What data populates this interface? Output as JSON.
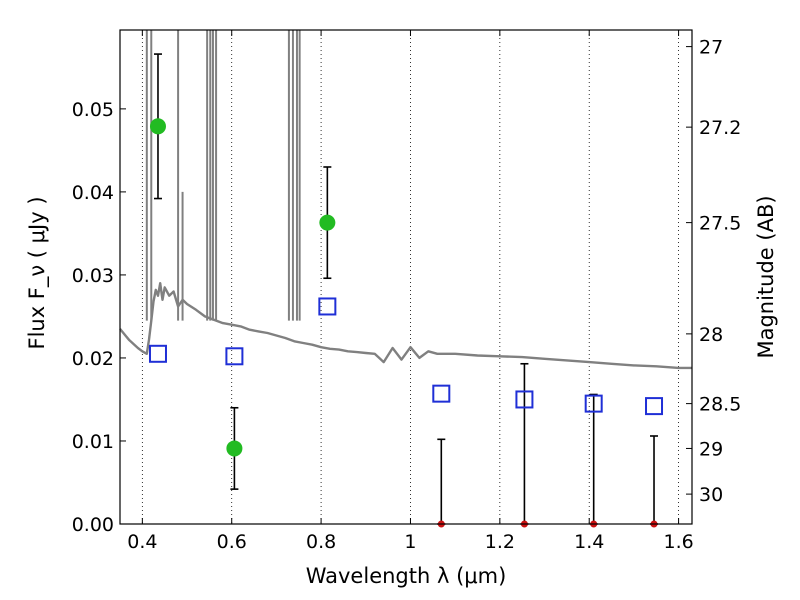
{
  "chart_data": {
    "type": "scatter",
    "xlabel": "Wavelength  λ (μm)",
    "ylabel": "Flux  F_ν  ( μJy )",
    "y2label": "Magnitude (AB)",
    "xlim": [
      0.35,
      1.63
    ],
    "ylim": [
      0.0,
      0.0595
    ],
    "grid": "x-dotted",
    "x_ticks": [
      0.4,
      0.6,
      0.8,
      1.0,
      1.2,
      1.4,
      1.6
    ],
    "x_tick_labels": [
      "0.4",
      "0.6",
      "0.8",
      "1",
      "1.2",
      "1.4",
      "1.6"
    ],
    "y_ticks": [
      0.0,
      0.01,
      0.02,
      0.03,
      0.04,
      0.05
    ],
    "y_tick_labels": [
      "0.00",
      "0.01",
      "0.02",
      "0.03",
      "0.04",
      "0.05"
    ],
    "y2_ticks": [
      {
        "label": "27",
        "flux": 0.0575
      },
      {
        "label": "27.2",
        "flux": 0.0478
      },
      {
        "label": "27.5",
        "flux": 0.0363
      },
      {
        "label": "28",
        "flux": 0.0229
      },
      {
        "label": "28.5",
        "flux": 0.0145
      },
      {
        "label": "29",
        "flux": 0.0091
      },
      {
        "label": "30",
        "flux": 0.0036
      }
    ],
    "colors": {
      "measured": "#22bb22",
      "model": "#1f2fd6",
      "sed": "#808080",
      "upper_limit": "#cc1111",
      "errorbar": "#000000"
    },
    "series": [
      {
        "kind": "measured",
        "points": [
          {
            "x": 0.435,
            "y": 0.0479,
            "ylo": 0.0392,
            "yhi": 0.0566
          },
          {
            "x": 0.606,
            "y": 0.0091,
            "ylo": 0.0042,
            "yhi": 0.014
          },
          {
            "x": 0.814,
            "y": 0.0363,
            "ylo": 0.0296,
            "yhi": 0.043
          }
        ]
      },
      {
        "kind": "model",
        "points": [
          {
            "x": 0.435,
            "y": 0.0205
          },
          {
            "x": 0.606,
            "y": 0.0202
          },
          {
            "x": 0.814,
            "y": 0.0262
          },
          {
            "x": 1.069,
            "y": 0.0157
          },
          {
            "x": 1.255,
            "y": 0.015
          },
          {
            "x": 1.41,
            "y": 0.0145
          },
          {
            "x": 1.545,
            "y": 0.0142
          }
        ]
      },
      {
        "kind": "upper_limit",
        "points": [
          {
            "x": 1.069,
            "yhi": 0.0102
          },
          {
            "x": 1.255,
            "yhi": 0.0193
          },
          {
            "x": 1.41,
            "yhi": 0.0156
          },
          {
            "x": 1.545,
            "yhi": 0.0106
          }
        ]
      }
    ],
    "sed": {
      "x": [
        0.35,
        0.37,
        0.39,
        0.4,
        0.41,
        0.415,
        0.42,
        0.425,
        0.43,
        0.435,
        0.44,
        0.445,
        0.45,
        0.46,
        0.47,
        0.48,
        0.49,
        0.5,
        0.52,
        0.54,
        0.55,
        0.56,
        0.58,
        0.6,
        0.62,
        0.64,
        0.66,
        0.68,
        0.7,
        0.72,
        0.74,
        0.76,
        0.78,
        0.8,
        0.82,
        0.84,
        0.86,
        0.88,
        0.9,
        0.92,
        0.94,
        0.96,
        0.98,
        1.0,
        1.02,
        1.04,
        1.06,
        1.1,
        1.15,
        1.2,
        1.25,
        1.3,
        1.35,
        1.4,
        1.45,
        1.5,
        1.55,
        1.6,
        1.63
      ],
      "y": [
        0.0235,
        0.0222,
        0.0212,
        0.0208,
        0.0205,
        0.0222,
        0.0245,
        0.0268,
        0.0282,
        0.0275,
        0.029,
        0.027,
        0.0285,
        0.0275,
        0.028,
        0.0262,
        0.027,
        0.0265,
        0.0258,
        0.025,
        0.0248,
        0.0246,
        0.0242,
        0.024,
        0.0238,
        0.0234,
        0.0232,
        0.023,
        0.0227,
        0.0224,
        0.022,
        0.0218,
        0.0216,
        0.0213,
        0.0211,
        0.021,
        0.0208,
        0.0207,
        0.0206,
        0.0205,
        0.0195,
        0.0212,
        0.0198,
        0.0213,
        0.02,
        0.0208,
        0.0205,
        0.0205,
        0.0203,
        0.0202,
        0.0201,
        0.0199,
        0.0197,
        0.0195,
        0.0193,
        0.0191,
        0.019,
        0.0188,
        0.0188
      ]
    },
    "emission_lines": [
      {
        "x": 0.41,
        "y": 0.0595
      },
      {
        "x": 0.42,
        "y": 0.0595
      },
      {
        "x": 0.48,
        "y": 0.0595
      },
      {
        "x": 0.49,
        "y": 0.04
      },
      {
        "x": 0.545,
        "y": 0.0595
      },
      {
        "x": 0.552,
        "y": 0.0595
      },
      {
        "x": 0.558,
        "y": 0.0595
      },
      {
        "x": 0.565,
        "y": 0.0595
      },
      {
        "x": 0.728,
        "y": 0.0595
      },
      {
        "x": 0.737,
        "y": 0.0595
      },
      {
        "x": 0.746,
        "y": 0.0595
      },
      {
        "x": 0.752,
        "y": 0.0595
      }
    ]
  }
}
